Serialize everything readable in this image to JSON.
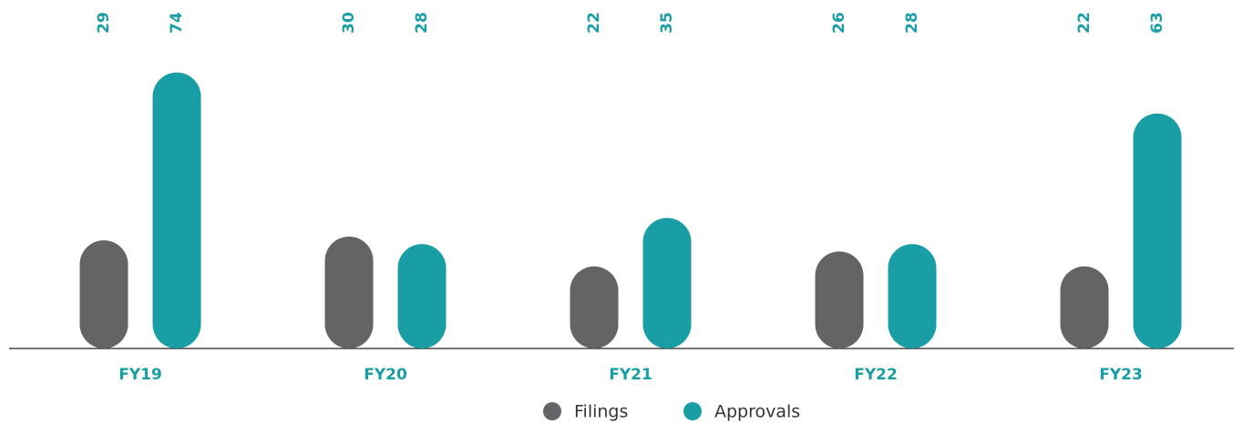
{
  "chart_data": {
    "type": "bar",
    "categories": [
      "FY19",
      "FY20",
      "FY21",
      "FY22",
      "FY23"
    ],
    "series": [
      {
        "name": "Filings",
        "color": "#636466",
        "values": [
          29,
          30,
          22,
          26,
          22
        ]
      },
      {
        "name": "Approvals",
        "color": "#1a9ea6",
        "values": [
          74,
          28,
          35,
          28,
          63
        ]
      }
    ],
    "legend": "bottom"
  }
}
